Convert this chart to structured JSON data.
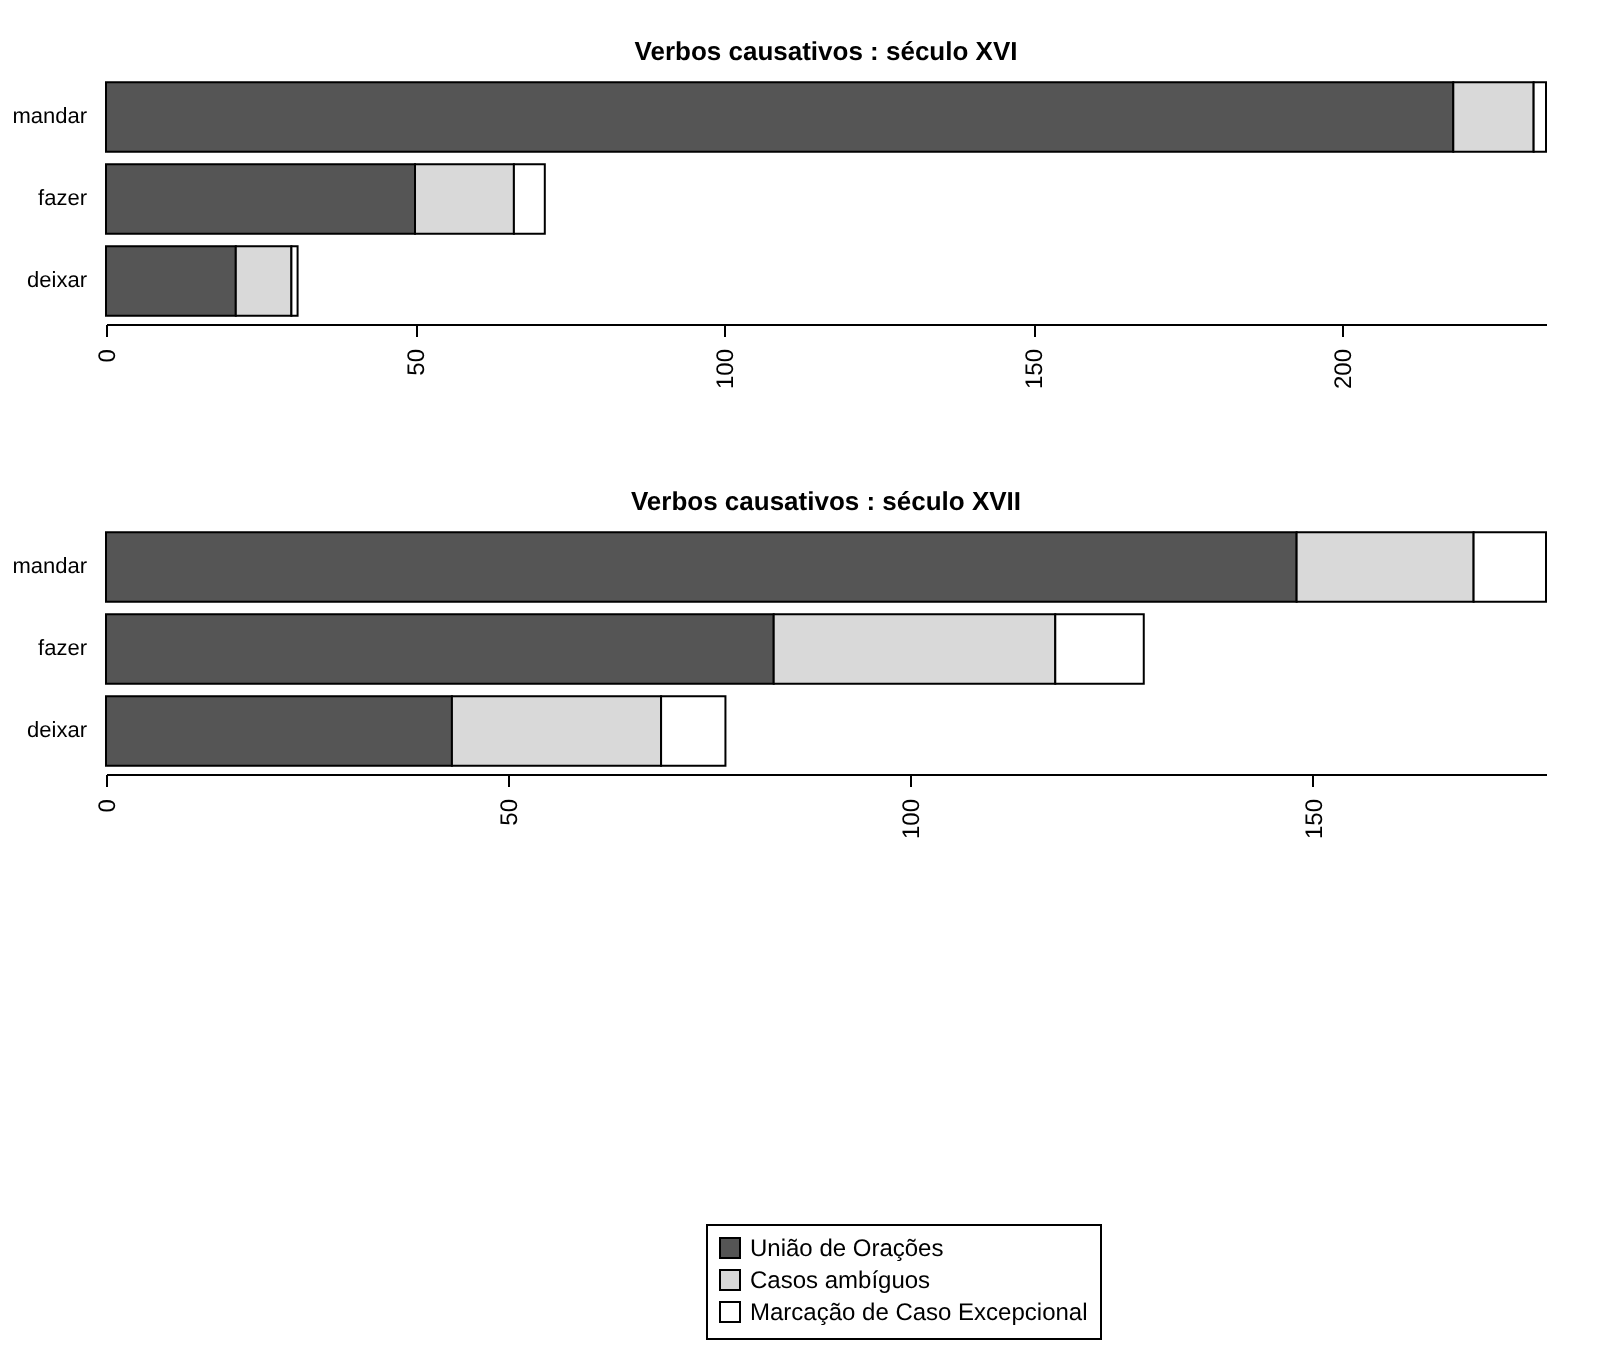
{
  "chart_data": [
    {
      "type": "bar",
      "orientation": "horizontal",
      "stacked": true,
      "title": "Verbos causativos : século XVI",
      "categories": [
        "mandar",
        "fazer",
        "deixar"
      ],
      "series": [
        {
          "name": "União de Orações",
          "color": "#555555",
          "values": [
            218,
            50,
            21
          ]
        },
        {
          "name": "Casos ambíguos",
          "color": "#d9d9d9",
          "values": [
            13,
            16,
            9
          ]
        },
        {
          "name": "Marcação de Caso Excepcional",
          "color": "#ffffff",
          "values": [
            2,
            5,
            1
          ]
        }
      ],
      "xlim": [
        0,
        233
      ],
      "xticks": [
        0,
        50,
        100,
        150,
        200
      ],
      "grid": false,
      "legend": "bottom"
    },
    {
      "type": "bar",
      "orientation": "horizontal",
      "stacked": true,
      "title": "Verbos causativos : século XVII",
      "categories": [
        "mandar",
        "fazer",
        "deixar"
      ],
      "series": [
        {
          "name": "União de Orações",
          "color": "#555555",
          "values": [
            148,
            83,
            43
          ]
        },
        {
          "name": "Casos ambíguos",
          "color": "#d9d9d9",
          "values": [
            22,
            35,
            26
          ]
        },
        {
          "name": "Marcação de Caso Excepcional",
          "color": "#ffffff",
          "values": [
            9,
            11,
            8
          ]
        }
      ],
      "xlim": [
        0,
        179
      ],
      "xticks": [
        0,
        50,
        100,
        150
      ],
      "grid": false,
      "legend": "bottom"
    }
  ]
}
